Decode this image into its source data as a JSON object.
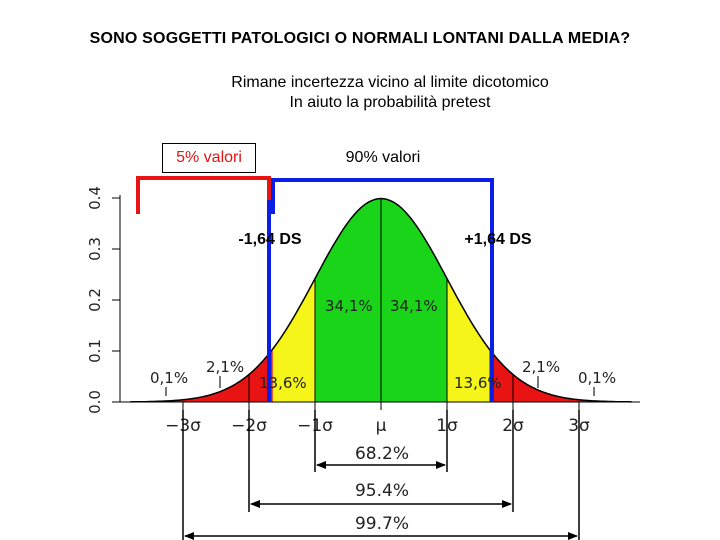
{
  "title": "SONO SOGGETTI PATOLOGICI O NORMALI LONTANI DALLA MEDIA?",
  "subtitle_line1": "Rimane incertezza vicino al limite dicotomico",
  "subtitle_line2": "In aiuto la probabilità pretest",
  "bracket_left_label": "5% valori",
  "bracket_center_label": "90% valori",
  "cutoff_left_label": "-1,64 DS",
  "cutoff_right_label": "+1,64 DS",
  "colors": {
    "red": "#e81414",
    "yellow": "#f5f51a",
    "green": "#19d419",
    "blue": "#0a1ee6"
  },
  "chart_data": {
    "type": "area",
    "y_ticks": [
      "0.0",
      "0.1",
      "0.2",
      "0.3",
      "0.4"
    ],
    "x_ticks": [
      "−3σ",
      "−2σ",
      "−1σ",
      "μ",
      "1σ",
      "2σ",
      "3σ"
    ],
    "region_labels": {
      "tail_left": "0,1%",
      "mid_left": "2,1%",
      "yellow_left": "13,6%",
      "green_left": "34,1%",
      "green_right": "34,1%",
      "yellow_right": "13,6%",
      "mid_right": "2,1%",
      "tail_right": "0,1%"
    },
    "coverage": [
      {
        "range": "±1σ",
        "label": "68.2%"
      },
      {
        "range": "±2σ",
        "label": "95.4%"
      },
      {
        "range": "±3σ",
        "label": "99.7%"
      }
    ]
  }
}
